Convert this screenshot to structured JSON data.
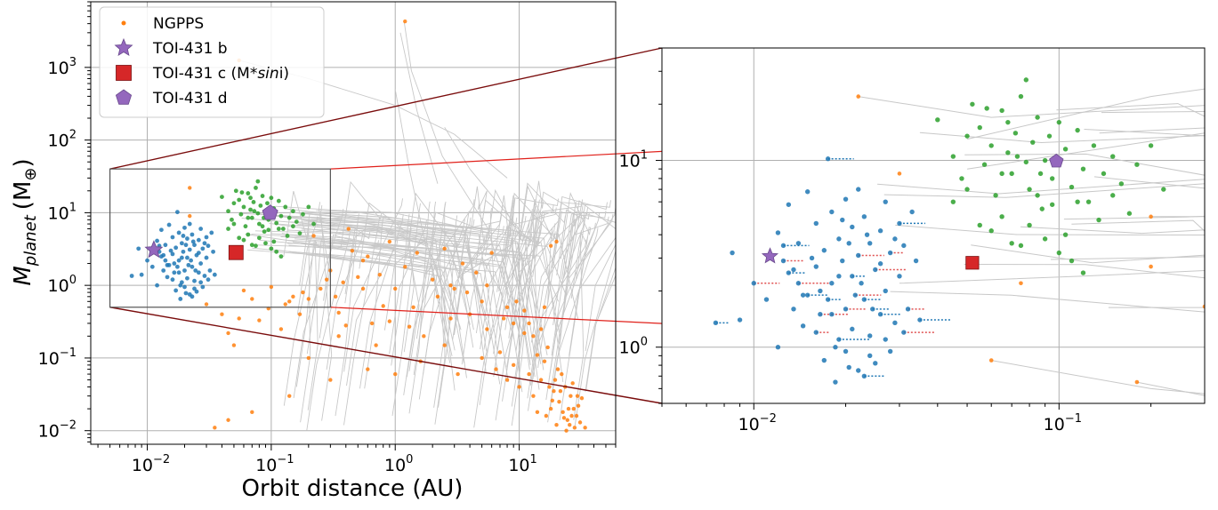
{
  "chart_data": [
    {
      "id": "main",
      "type": "scatter",
      "xscale": "log",
      "yscale": "log",
      "xlim": [
        0.0035,
        60
      ],
      "ylim": [
        0.0065,
        8000
      ],
      "xlabel": "Orbit distance (AU)",
      "ylabel_main": "M",
      "ylabel_sub": "planet",
      "ylabel_unit_open": "(M",
      "ylabel_unit_sub": "⊕",
      "ylabel_unit_close": ")",
      "grid": true,
      "x_ticks": [
        {
          "value": 0.01,
          "base": "10",
          "exp": "−2"
        },
        {
          "value": 0.1,
          "base": "10",
          "exp": "−1"
        },
        {
          "value": 1,
          "base": "10",
          "exp": "0"
        },
        {
          "value": 10,
          "base": "10",
          "exp": "1"
        }
      ],
      "y_ticks": [
        {
          "value": 0.01,
          "base": "10",
          "exp": "−2"
        },
        {
          "value": 0.1,
          "base": "10",
          "exp": "−1"
        },
        {
          "value": 1,
          "base": "10",
          "exp": "0"
        },
        {
          "value": 10,
          "base": "10",
          "exp": "1"
        },
        {
          "value": 100,
          "base": "10",
          "exp": "2"
        },
        {
          "value": 1000,
          "base": "10",
          "exp": "3"
        }
      ],
      "zoom_box": {
        "x": [
          0.005,
          0.3
        ],
        "y": [
          0.5,
          40
        ]
      },
      "legend": {
        "placement": "upper-left",
        "entries": [
          {
            "label_parts": [
              {
                "text": "NGPPS",
                "italic": false
              }
            ],
            "marker": "dot",
            "color": "#ff7f0e"
          },
          {
            "label_parts": [
              {
                "text": "TOI-431 b",
                "italic": false
              }
            ],
            "marker": "star",
            "color": "#9467bd"
          },
          {
            "label_parts": [
              {
                "text": "TOI-431 c (M*",
                "italic": false
              },
              {
                "text": "sin",
                "italic": true
              },
              {
                "text": "i)",
                "italic": false
              }
            ],
            "marker": "square",
            "color": "#d62728"
          },
          {
            "label_parts": [
              {
                "text": "TOI-431 d",
                "italic": false
              }
            ],
            "marker": "pentagon",
            "color": "#9467bd"
          }
        ]
      }
    },
    {
      "id": "inset",
      "type": "scatter",
      "xscale": "log",
      "yscale": "log",
      "xlim": [
        0.005,
        0.3
      ],
      "ylim": [
        0.5,
        40
      ],
      "grid": true,
      "x_ticks": [
        {
          "value": 0.01,
          "base": "10",
          "exp": "−2"
        },
        {
          "value": 0.1,
          "base": "10",
          "exp": "−1"
        }
      ],
      "y_ticks": [
        {
          "value": 1,
          "base": "10",
          "exp": "0"
        },
        {
          "value": 10,
          "base": "10",
          "exp": "1"
        }
      ]
    }
  ],
  "planets": {
    "b": {
      "a": 0.0113,
      "m": 3.07,
      "color": "#9467bd",
      "marker": "star"
    },
    "c": {
      "a": 0.052,
      "m": 2.83,
      "color": "#d62728",
      "marker": "square"
    },
    "d": {
      "a": 0.098,
      "m": 9.9,
      "color": "#9467bd",
      "marker": "pentagon"
    }
  },
  "colors": {
    "ngpps": "#ff7f0e",
    "inner": "#1f77b4",
    "outer": "#2ca02c",
    "track": "#c8c8c8",
    "grid": "#b0b0b0",
    "zoom_outer": "#7a0c0c",
    "zoom_inner": "#e0201a",
    "tail_red": "#e05050"
  },
  "ngpps_points": [
    [
      1.2,
      4300
    ],
    [
      0.055,
      1250
    ],
    [
      0.022,
      22
    ],
    [
      0.06,
      0.85
    ],
    [
      0.022,
      9
    ],
    [
      0.03,
      0.55
    ],
    [
      0.04,
      0.4
    ],
    [
      0.045,
      0.22
    ],
    [
      0.05,
      0.15
    ],
    [
      0.055,
      0.35
    ],
    [
      0.07,
      0.65
    ],
    [
      0.08,
      0.33
    ],
    [
      0.095,
      0.48
    ],
    [
      0.12,
      0.25
    ],
    [
      0.13,
      0.55
    ],
    [
      0.14,
      0.6
    ],
    [
      0.15,
      0.7
    ],
    [
      0.18,
      0.8
    ],
    [
      0.2,
      0.65
    ],
    [
      0.22,
      4.8
    ],
    [
      0.25,
      0.9
    ],
    [
      0.28,
      1.2
    ],
    [
      0.3,
      1.6
    ],
    [
      0.35,
      0.42
    ],
    [
      0.35,
      0.2
    ],
    [
      0.4,
      0.28
    ],
    [
      0.42,
      6
    ],
    [
      0.45,
      3
    ],
    [
      0.5,
      1.3
    ],
    [
      0.55,
      2.2
    ],
    [
      0.6,
      2.5
    ],
    [
      0.65,
      0.3
    ],
    [
      0.7,
      0.15
    ],
    [
      0.8,
      0.52
    ],
    [
      0.9,
      4
    ],
    [
      1.0,
      0.9
    ],
    [
      1.2,
      1.8
    ],
    [
      1.4,
      0.5
    ],
    [
      1.5,
      2.8
    ],
    [
      1.7,
      0.2
    ],
    [
      2.0,
      1.2
    ],
    [
      2.2,
      0.7
    ],
    [
      2.5,
      3.2
    ],
    [
      2.8,
      0.35
    ],
    [
      3.0,
      0.9
    ],
    [
      3.5,
      2.0
    ],
    [
      4.0,
      0.4
    ],
    [
      4.5,
      1.5
    ],
    [
      5.0,
      0.6
    ],
    [
      5.5,
      0.25
    ],
    [
      6.0,
      2.8
    ],
    [
      7.0,
      0.12
    ],
    [
      8.0,
      0.5
    ],
    [
      9.0,
      0.08
    ],
    [
      10.0,
      0.04
    ],
    [
      11.0,
      0.22
    ],
    [
      12.0,
      0.06
    ],
    [
      13.0,
      0.03
    ],
    [
      14.0,
      0.018
    ],
    [
      15.0,
      0.05
    ],
    [
      16.0,
      0.09
    ],
    [
      17.0,
      0.14
    ],
    [
      18.0,
      0.02
    ],
    [
      19.0,
      0.035
    ],
    [
      20.0,
      0.012
    ],
    [
      21.0,
      0.025
    ],
    [
      22.0,
      0.06
    ],
    [
      23.0,
      0.015
    ],
    [
      24.0,
      0.01
    ],
    [
      25.0,
      0.02
    ],
    [
      26.0,
      0.03
    ],
    [
      27.0,
      0.045
    ],
    [
      28.0,
      0.011
    ],
    [
      29.0,
      0.016
    ],
    [
      30.0,
      0.022
    ],
    [
      31.0,
      0.013
    ],
    [
      32.0,
      0.028
    ],
    [
      34.0,
      0.011
    ],
    [
      18.0,
      3.5
    ],
    [
      20.0,
      4.0
    ],
    [
      16.0,
      0.5
    ],
    [
      12.0,
      0.3
    ],
    [
      9.0,
      0.3
    ],
    [
      8.0,
      0.05
    ],
    [
      6.5,
      0.07
    ],
    [
      5.0,
      0.1
    ],
    [
      3.2,
      0.06
    ],
    [
      2.5,
      0.15
    ],
    [
      1.6,
      0.09
    ],
    [
      1.0,
      0.06
    ],
    [
      0.6,
      0.07
    ],
    [
      0.3,
      0.05
    ],
    [
      0.2,
      0.1
    ],
    [
      0.14,
      0.03
    ],
    [
      0.07,
      0.018
    ],
    [
      0.045,
      0.014
    ],
    [
      0.035,
      0.011
    ],
    [
      14.0,
      0.11
    ],
    [
      16.5,
      0.016
    ],
    [
      19.5,
      0.05
    ],
    [
      21.5,
      0.035
    ],
    [
      23.5,
      0.04
    ],
    [
      25.5,
      0.012
    ],
    [
      27.5,
      0.02
    ],
    [
      29.5,
      0.03
    ],
    [
      22.5,
      0.018
    ],
    [
      18.5,
      0.026
    ],
    [
      17.5,
      0.04
    ],
    [
      20.5,
      0.07
    ],
    [
      24.5,
      0.014
    ],
    [
      26.5,
      0.016
    ],
    [
      0.1,
      0.95
    ],
    [
      0.17,
      0.4
    ],
    [
      0.33,
      0.7
    ],
    [
      0.38,
      1.1
    ],
    [
      0.55,
      0.9
    ],
    [
      0.75,
      1.4
    ],
    [
      0.9,
      0.32
    ],
    [
      1.3,
      0.27
    ],
    [
      2.8,
      1.0
    ],
    [
      3.8,
      0.8
    ],
    [
      5.5,
      1.0
    ],
    [
      7.5,
      0.35
    ],
    [
      9.5,
      0.6
    ],
    [
      11.0,
      0.45
    ],
    [
      13.0,
      0.2
    ],
    [
      15.0,
      0.25
    ]
  ],
  "ngpps_inset": [
    [
      0.022,
      22
    ],
    [
      0.03,
      8.5
    ],
    [
      0.06,
      0.85
    ],
    [
      0.2,
      5
    ],
    [
      0.18,
      0.65
    ],
    [
      0.3,
      1.65
    ],
    [
      0.2,
      2.7
    ],
    [
      0.075,
      2.2
    ]
  ],
  "inner_points": [
    [
      0.0075,
      1.35
    ],
    [
      0.0085,
      3.2
    ],
    [
      0.009,
      1.4
    ],
    [
      0.01,
      2.2
    ],
    [
      0.011,
      1.8
    ],
    [
      0.012,
      1.0
    ],
    [
      0.013,
      2.5
    ],
    [
      0.0135,
      1.6
    ],
    [
      0.014,
      3.6
    ],
    [
      0.014,
      2.2
    ],
    [
      0.0145,
      1.3
    ],
    [
      0.015,
      6.8
    ],
    [
      0.015,
      1.9
    ],
    [
      0.016,
      4.6
    ],
    [
      0.016,
      2.7
    ],
    [
      0.016,
      1.2
    ],
    [
      0.017,
      3.3
    ],
    [
      0.017,
      0.85
    ],
    [
      0.0175,
      10.2
    ],
    [
      0.018,
      5.3
    ],
    [
      0.018,
      2.2
    ],
    [
      0.018,
      1.5
    ],
    [
      0.0185,
      0.65
    ],
    [
      0.019,
      3.8
    ],
    [
      0.019,
      1.1
    ],
    [
      0.0195,
      2.9
    ],
    [
      0.02,
      6.2
    ],
    [
      0.02,
      1.6
    ],
    [
      0.02,
      0.95
    ],
    [
      0.021,
      4.4
    ],
    [
      0.021,
      2.4
    ],
    [
      0.021,
      1.25
    ],
    [
      0.022,
      7.0
    ],
    [
      0.022,
      3.1
    ],
    [
      0.022,
      0.75
    ],
    [
      0.023,
      5.0
    ],
    [
      0.023,
      1.8
    ],
    [
      0.024,
      3.6
    ],
    [
      0.024,
      1.15
    ],
    [
      0.025,
      2.6
    ],
    [
      0.025,
      0.82
    ],
    [
      0.026,
      4.2
    ],
    [
      0.026,
      1.5
    ],
    [
      0.027,
      6.0
    ],
    [
      0.027,
      2.0
    ],
    [
      0.028,
      3.2
    ],
    [
      0.028,
      0.95
    ],
    [
      0.029,
      1.35
    ],
    [
      0.03,
      4.6
    ],
    [
      0.03,
      2.4
    ],
    [
      0.031,
      3.5
    ],
    [
      0.032,
      1.6
    ],
    [
      0.033,
      5.3
    ],
    [
      0.034,
      2.9
    ],
    [
      0.035,
      1.4
    ],
    [
      0.012,
      4.1
    ],
    [
      0.013,
      5.8
    ],
    [
      0.0125,
      2.9
    ],
    [
      0.0155,
      3.0
    ],
    [
      0.0165,
      2.0
    ],
    [
      0.0175,
      1.8
    ],
    [
      0.019,
      2.4
    ],
    [
      0.0205,
      3.6
    ],
    [
      0.0215,
      1.9
    ],
    [
      0.0225,
      2.2
    ],
    [
      0.0235,
      4.0
    ],
    [
      0.0245,
      1.6
    ],
    [
      0.026,
      2.8
    ],
    [
      0.029,
      3.8
    ],
    [
      0.031,
      1.2
    ],
    [
      0.027,
      1.1
    ],
    [
      0.024,
      0.9
    ],
    [
      0.023,
      0.7
    ],
    [
      0.0205,
      0.78
    ],
    [
      0.0185,
      1.0
    ],
    [
      0.0165,
      1.5
    ],
    [
      0.0145,
      1.9
    ],
    [
      0.0135,
      2.6
    ],
    [
      0.0125,
      3.5
    ],
    [
      0.0195,
      4.8
    ]
  ],
  "outer_points": [
    [
      0.04,
      16.5
    ],
    [
      0.045,
      10.5
    ],
    [
      0.048,
      8.0
    ],
    [
      0.05,
      13.5
    ],
    [
      0.052,
      20.0
    ],
    [
      0.055,
      15.0
    ],
    [
      0.057,
      9.5
    ],
    [
      0.06,
      12.0
    ],
    [
      0.062,
      6.5
    ],
    [
      0.065,
      18.5
    ],
    [
      0.068,
      11.0
    ],
    [
      0.07,
      8.5
    ],
    [
      0.072,
      14.0
    ],
    [
      0.075,
      22.0
    ],
    [
      0.078,
      9.8
    ],
    [
      0.08,
      7.0
    ],
    [
      0.082,
      12.5
    ],
    [
      0.085,
      17.0
    ],
    [
      0.088,
      5.5
    ],
    [
      0.09,
      10.0
    ],
    [
      0.093,
      13.5
    ],
    [
      0.095,
      8.0
    ],
    [
      0.1,
      16.0
    ],
    [
      0.105,
      11.5
    ],
    [
      0.11,
      7.2
    ],
    [
      0.115,
      14.5
    ],
    [
      0.12,
      9.0
    ],
    [
      0.125,
      6.0
    ],
    [
      0.13,
      12.0
    ],
    [
      0.14,
      8.5
    ],
    [
      0.15,
      10.5
    ],
    [
      0.16,
      7.5
    ],
    [
      0.17,
      5.2
    ],
    [
      0.18,
      9.5
    ],
    [
      0.2,
      12.0
    ],
    [
      0.22,
      7.0
    ],
    [
      0.078,
      27.0
    ],
    [
      0.068,
      16.0
    ],
    [
      0.058,
      19.0
    ],
    [
      0.05,
      7.0
    ],
    [
      0.06,
      4.2
    ],
    [
      0.07,
      3.6
    ],
    [
      0.075,
      3.5
    ],
    [
      0.08,
      4.5
    ],
    [
      0.09,
      3.8
    ],
    [
      0.1,
      3.2
    ],
    [
      0.11,
      2.9
    ],
    [
      0.12,
      2.5
    ],
    [
      0.055,
      4.5
    ],
    [
      0.065,
      5.0
    ],
    [
      0.085,
      6.5
    ],
    [
      0.095,
      5.8
    ],
    [
      0.105,
      4.0
    ],
    [
      0.045,
      6.0
    ],
    [
      0.135,
      4.8
    ],
    [
      0.15,
      6.5
    ],
    [
      0.065,
      8.5
    ],
    [
      0.087,
      8.5
    ],
    [
      0.073,
      10.5
    ],
    [
      0.115,
      6.0
    ]
  ]
}
